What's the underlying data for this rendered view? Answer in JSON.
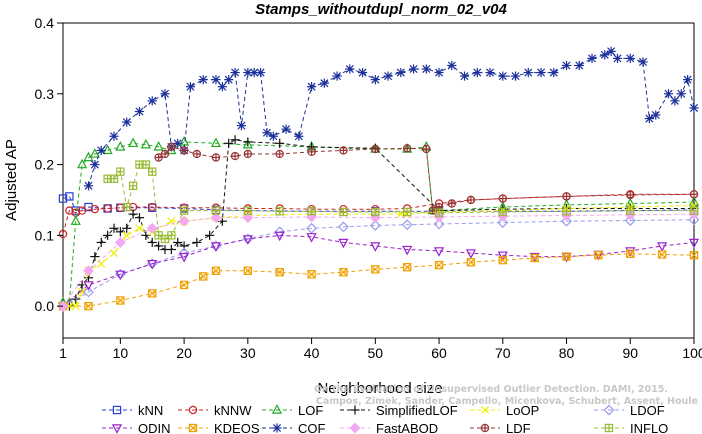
{
  "chart_data": {
    "type": "line",
    "title": "Stamps_withoutdupl_norm_02_v04",
    "xlabel": "Neighborhood size",
    "ylabel": "Adjusted AP",
    "xlim": [
      1,
      100
    ],
    "ylim": [
      -0.045,
      0.4
    ],
    "xticks": [
      1,
      10,
      20,
      30,
      40,
      50,
      60,
      70,
      80,
      90,
      100
    ],
    "yticks": [
      0.0,
      0.1,
      0.2,
      0.3,
      0.4
    ],
    "ytick_labels": [
      "0.0",
      "0.1",
      "0.2",
      "0.3",
      "0.4"
    ],
    "grid": false,
    "legend_position": "bottom",
    "watermark_lines": [
      "Campos, Zimek, Sander, Campello, Micenkova, Schubert, Assent, Houle",
      "On the Evaluation of Unsupervised Outlier Detection. DAMI, 2015."
    ],
    "series": [
      {
        "name": "kNN",
        "color": "#2b3fd6",
        "marker": "square",
        "x": [
          1,
          2,
          3,
          5,
          8,
          10,
          15,
          20,
          25,
          30,
          40,
          50,
          60,
          70,
          80,
          90,
          100
        ],
        "y": [
          0.152,
          0.155,
          0.135,
          0.14,
          0.138,
          0.139,
          0.139,
          0.138,
          0.136,
          0.135,
          0.134,
          0.134,
          0.134,
          0.134,
          0.134,
          0.135,
          0.136
        ]
      },
      {
        "name": "kNNW",
        "color": "#cc2222",
        "marker": "circle",
        "x": [
          1,
          2,
          3,
          4,
          6,
          8,
          10,
          12,
          15,
          20,
          25,
          30,
          35,
          40,
          45,
          50,
          55,
          60,
          65,
          70,
          80,
          90,
          100
        ],
        "y": [
          0.102,
          0.135,
          0.132,
          0.135,
          0.137,
          0.138,
          0.139,
          0.14,
          0.14,
          0.139,
          0.139,
          0.138,
          0.138,
          0.137,
          0.137,
          0.137,
          0.138,
          0.145,
          0.15,
          0.152,
          0.155,
          0.158,
          0.158
        ]
      },
      {
        "name": "LOF",
        "color": "#22aa22",
        "marker": "triangle",
        "x": [
          1,
          2,
          3,
          4,
          5,
          6,
          8,
          10,
          12,
          14,
          16,
          18,
          20,
          25,
          30,
          40,
          50,
          55,
          58,
          59,
          60,
          70,
          80,
          90,
          100
        ],
        "y": [
          0.005,
          0.005,
          0.12,
          0.2,
          0.21,
          0.215,
          0.22,
          0.225,
          0.23,
          0.228,
          0.225,
          0.22,
          0.232,
          0.23,
          0.228,
          0.225,
          0.222,
          0.222,
          0.225,
          0.135,
          0.135,
          0.14,
          0.143,
          0.145,
          0.147
        ]
      },
      {
        "name": "SimplifiedLOF",
        "color": "#111111",
        "marker": "plus",
        "x": [
          1,
          2,
          3,
          4,
          5,
          6,
          7,
          8,
          9,
          10,
          11,
          12,
          13,
          14,
          15,
          16,
          17,
          18,
          19,
          20,
          22,
          24,
          26,
          27,
          28,
          30,
          35,
          40,
          50,
          60,
          70,
          80,
          90,
          100
        ],
        "y": [
          0.0,
          0.0,
          0.01,
          0.03,
          0.04,
          0.07,
          0.09,
          0.1,
          0.11,
          0.105,
          0.11,
          0.13,
          0.125,
          0.1,
          0.09,
          0.085,
          0.08,
          0.08,
          0.09,
          0.085,
          0.09,
          0.1,
          0.12,
          0.23,
          0.235,
          0.232,
          0.23,
          0.225,
          0.223,
          0.135,
          0.137,
          0.138,
          0.138,
          0.138
        ]
      },
      {
        "name": "LoOP",
        "color": "#eeee00",
        "marker": "x",
        "x": [
          1,
          2,
          3,
          4,
          5,
          7,
          9,
          11,
          13,
          15,
          18,
          20,
          25,
          30,
          40,
          50,
          54,
          55,
          60,
          70,
          80,
          90,
          100
        ],
        "y": [
          0.0,
          0.0,
          0.0,
          0.02,
          0.05,
          0.06,
          0.075,
          0.1,
          0.11,
          0.105,
          0.12,
          0.12,
          0.125,
          0.128,
          0.13,
          0.13,
          0.13,
          0.13,
          0.133,
          0.135,
          0.138,
          0.14,
          0.142
        ]
      },
      {
        "name": "LDOF",
        "color": "#9a9af0",
        "marker": "diamond",
        "x": [
          1,
          5,
          10,
          15,
          20,
          25,
          30,
          35,
          40,
          45,
          50,
          55,
          60,
          70,
          80,
          90,
          100
        ],
        "y": [
          0.0,
          0.02,
          0.045,
          0.06,
          0.075,
          0.085,
          0.095,
          0.105,
          0.11,
          0.112,
          0.114,
          0.115,
          0.116,
          0.118,
          0.12,
          0.121,
          0.122
        ]
      },
      {
        "name": "ODIN",
        "color": "#9922cc",
        "marker": "triangle-down",
        "x": [
          1,
          5,
          10,
          15,
          20,
          25,
          30,
          35,
          40,
          45,
          50,
          55,
          60,
          65,
          70,
          75,
          80,
          85,
          90,
          95,
          100
        ],
        "y": [
          0.0,
          0.03,
          0.045,
          0.06,
          0.07,
          0.085,
          0.095,
          0.1,
          0.098,
          0.09,
          0.085,
          0.08,
          0.078,
          0.075,
          0.072,
          0.07,
          0.07,
          0.073,
          0.078,
          0.085,
          0.09
        ]
      },
      {
        "name": "KDEOS",
        "color": "#f0a000",
        "marker": "square-x",
        "x": [
          1,
          5,
          10,
          15,
          20,
          23,
          25,
          30,
          35,
          40,
          45,
          50,
          55,
          60,
          65,
          70,
          75,
          80,
          85,
          90,
          95,
          100
        ],
        "y": [
          0.0,
          0.0,
          0.008,
          0.018,
          0.03,
          0.042,
          0.05,
          0.05,
          0.048,
          0.045,
          0.048,
          0.052,
          0.055,
          0.058,
          0.062,
          0.065,
          0.068,
          0.07,
          0.072,
          0.074,
          0.073,
          0.072
        ]
      },
      {
        "name": "COF",
        "color": "#1a2f9a",
        "marker": "asterisk",
        "x": [
          5,
          6,
          7,
          9,
          11,
          13,
          15,
          17,
          18,
          19,
          20,
          21,
          23,
          25,
          26,
          27,
          28,
          29,
          30,
          31,
          32,
          33,
          34,
          36,
          38,
          40,
          42,
          44,
          46,
          48,
          50,
          52,
          54,
          56,
          58,
          60,
          62,
          64,
          66,
          68,
          70,
          72,
          74,
          76,
          78,
          80,
          82,
          84,
          86,
          87,
          88,
          90,
          92,
          93,
          94,
          96,
          97,
          98,
          99,
          100
        ],
        "y": [
          0.17,
          0.2,
          0.22,
          0.24,
          0.26,
          0.275,
          0.29,
          0.3,
          0.225,
          0.23,
          0.22,
          0.31,
          0.32,
          0.32,
          0.31,
          0.32,
          0.33,
          0.255,
          0.33,
          0.33,
          0.33,
          0.245,
          0.24,
          0.25,
          0.24,
          0.31,
          0.315,
          0.325,
          0.335,
          0.33,
          0.32,
          0.325,
          0.33,
          0.335,
          0.335,
          0.33,
          0.34,
          0.325,
          0.33,
          0.33,
          0.325,
          0.325,
          0.33,
          0.33,
          0.33,
          0.34,
          0.34,
          0.35,
          0.355,
          0.36,
          0.35,
          0.35,
          0.345,
          0.265,
          0.27,
          0.3,
          0.29,
          0.3,
          0.32,
          0.28
        ]
      },
      {
        "name": "FastABOD",
        "color": "#f4a8f4",
        "marker": "diamond-filled",
        "x": [
          1,
          5,
          10,
          15,
          20,
          25,
          30,
          40,
          50,
          60,
          70,
          80,
          90,
          100
        ],
        "y": [
          0.0,
          0.05,
          0.09,
          0.11,
          0.12,
          0.125,
          0.125,
          0.126,
          0.125,
          0.126,
          0.127,
          0.128,
          0.129,
          0.13
        ]
      },
      {
        "name": "LDF",
        "color": "#993333",
        "marker": "circle-plus",
        "x": [
          16,
          17,
          18,
          20,
          22,
          25,
          28,
          30,
          35,
          40,
          45,
          50,
          55,
          58,
          59,
          60,
          62,
          65,
          70,
          80,
          90,
          100
        ],
        "y": [
          0.21,
          0.215,
          0.225,
          0.22,
          0.215,
          0.21,
          0.212,
          0.215,
          0.215,
          0.218,
          0.22,
          0.222,
          0.223,
          0.222,
          0.135,
          0.14,
          0.145,
          0.15,
          0.152,
          0.155,
          0.157,
          0.158
        ]
      },
      {
        "name": "INFLO",
        "color": "#99bb33",
        "marker": "square-cross",
        "x": [
          8,
          9,
          10,
          11,
          12,
          13,
          14,
          15,
          16,
          17,
          18,
          20,
          25,
          30,
          35,
          40,
          45,
          50,
          55,
          60,
          70,
          80,
          90,
          100
        ],
        "y": [
          0.18,
          0.18,
          0.19,
          0.14,
          0.17,
          0.2,
          0.2,
          0.19,
          0.1,
          0.095,
          0.1,
          0.135,
          0.135,
          0.135,
          0.134,
          0.134,
          0.133,
          0.133,
          0.133,
          0.132,
          0.133,
          0.134,
          0.135,
          0.135
        ]
      }
    ]
  }
}
